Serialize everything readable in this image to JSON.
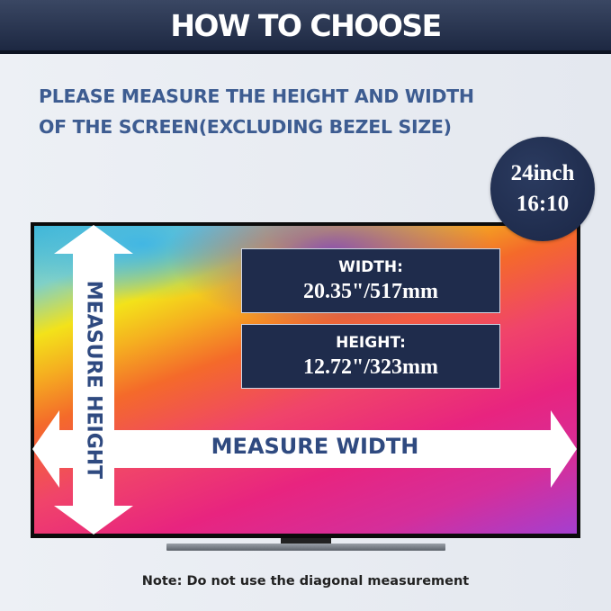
{
  "header": {
    "title": "HOW TO CHOOSE"
  },
  "instructions": {
    "line1": "PLEASE MEASURE THE HEIGHT AND WIDTH",
    "line2": "OF THE SCREEN(EXCLUDING BEZEL SIZE)"
  },
  "badge": {
    "size": "24inch",
    "ratio": "16:10"
  },
  "width_box": {
    "label": "WIDTH:",
    "value": "20.35\"/517mm"
  },
  "height_box": {
    "label": "HEIGHT:",
    "value": "12.72\"/323mm"
  },
  "arrows": {
    "width_label": "MEASURE WIDTH",
    "height_label": "MEASURE HEIGHT"
  },
  "note": "Note: Do not use the diagonal measurement",
  "colors": {
    "navy": "#1f2c4c",
    "accent_text": "#3d5c91",
    "arrow": "#ffffff"
  }
}
